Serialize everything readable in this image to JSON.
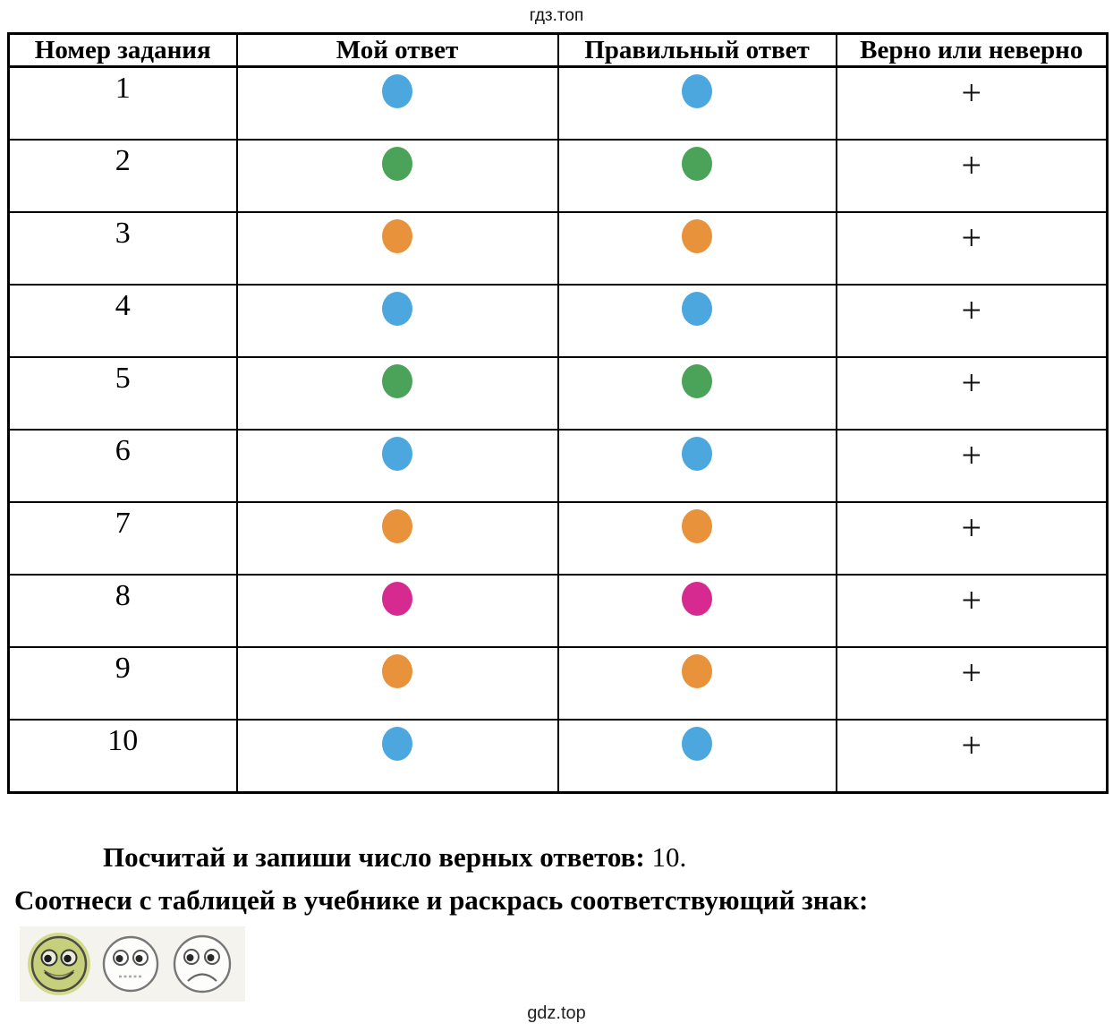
{
  "watermark_top": "гдз.топ",
  "watermark_bottom": "gdz.top",
  "table": {
    "headers": [
      "Номер задания",
      "Мой ответ",
      "Правильный ответ",
      "Верно или неверно"
    ],
    "rows": [
      {
        "number": "1",
        "my_answer": "blue",
        "correct_answer": "blue",
        "result": "+"
      },
      {
        "number": "2",
        "my_answer": "green",
        "correct_answer": "green",
        "result": "+"
      },
      {
        "number": "3",
        "my_answer": "orange",
        "correct_answer": "orange",
        "result": "+"
      },
      {
        "number": "4",
        "my_answer": "blue",
        "correct_answer": "blue",
        "result": "+"
      },
      {
        "number": "5",
        "my_answer": "green",
        "correct_answer": "green",
        "result": "+"
      },
      {
        "number": "6",
        "my_answer": "blue",
        "correct_answer": "blue",
        "result": "+"
      },
      {
        "number": "7",
        "my_answer": "orange",
        "correct_answer": "orange",
        "result": "+"
      },
      {
        "number": "8",
        "my_answer": "pink",
        "correct_answer": "pink",
        "result": "+"
      },
      {
        "number": "9",
        "my_answer": "orange",
        "correct_answer": "orange",
        "result": "+"
      },
      {
        "number": "10",
        "my_answer": "blue",
        "correct_answer": "blue",
        "result": "+"
      }
    ]
  },
  "colors": {
    "blue": "#4da7df",
    "green": "#4ba35a",
    "orange": "#e8923b",
    "pink": "#d62a90",
    "happy_fill": "#c6d07c",
    "happy_halo": "#d3da8e"
  },
  "summary": {
    "count_label": "Посчитай и запиши число верных ответов:",
    "count_value": "10.",
    "match_label": "Соотнеси с таблицей в учебнике и раскрась соответствующий знак:"
  },
  "rating": {
    "selected": "happy"
  }
}
